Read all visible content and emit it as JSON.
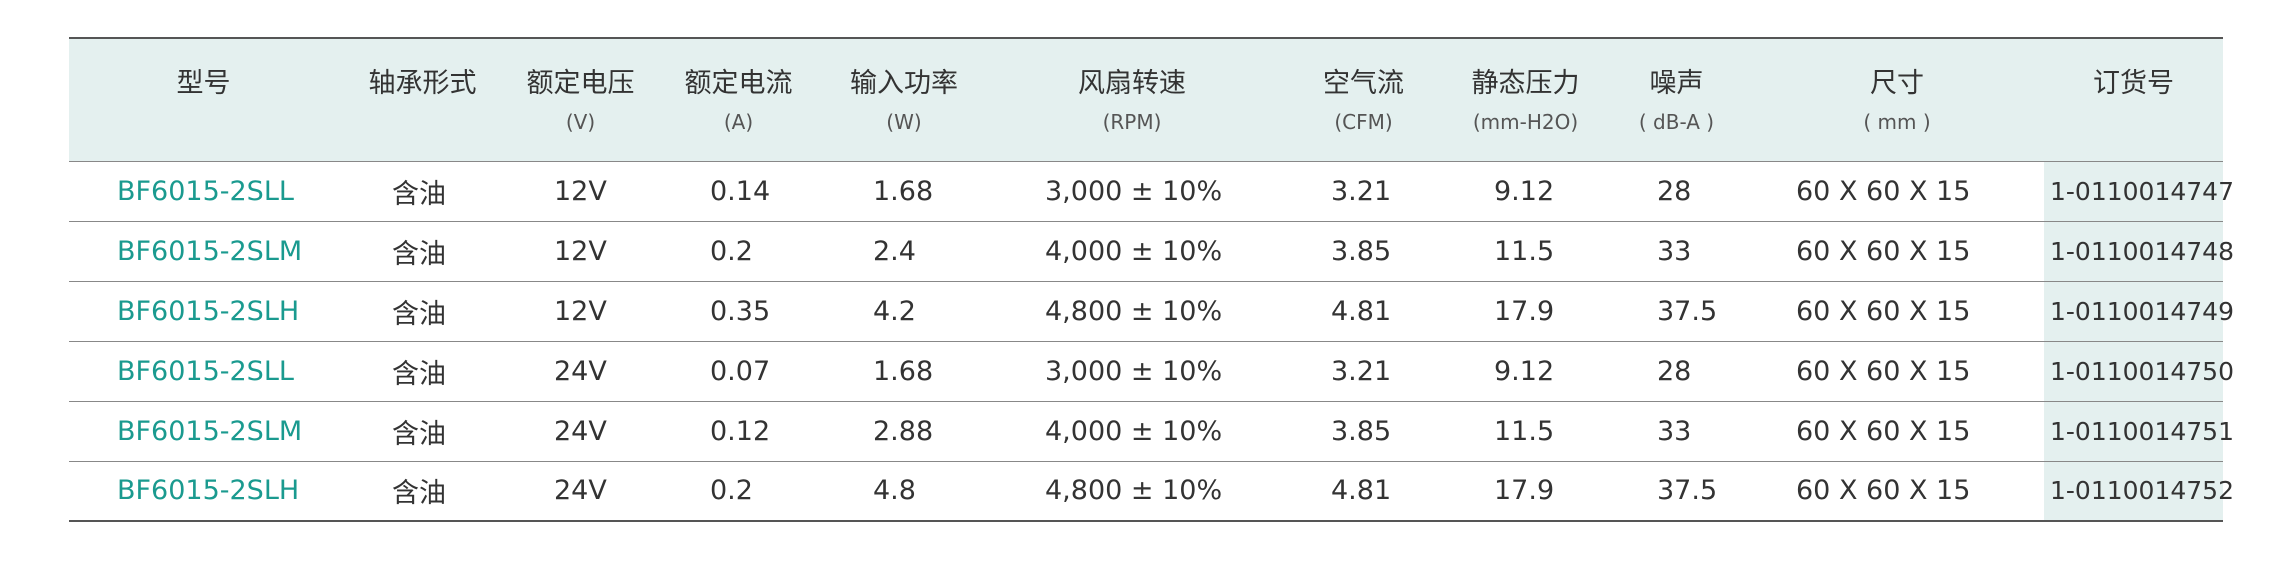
{
  "table": {
    "headers": [
      {
        "title": "型号"
      },
      {
        "title": "轴承形式"
      },
      {
        "title": "额定电压",
        "unit": "(V)"
      },
      {
        "title": "额定电流",
        "unit": "(A)"
      },
      {
        "title": "输入功率",
        "unit": "(W)"
      },
      {
        "title": "风扇转速",
        "unit": "(RPM)"
      },
      {
        "title": "空气流",
        "unit": "(CFM)"
      },
      {
        "title": "静态压力",
        "unit": "(mm-H2O)"
      },
      {
        "title": "噪声",
        "unit": "( dB-A )"
      },
      {
        "title": "尺寸",
        "unit": "( mm )"
      },
      {
        "title": "订货号"
      }
    ],
    "rows": [
      [
        "BF6015-2SLL",
        "含油",
        "12V",
        "0.14",
        "1.68",
        "3,000 ± 10%",
        "3.21",
        "9.12",
        "28",
        "60 X 60 X 15",
        "1-0110014747"
      ],
      [
        "BF6015-2SLM",
        "含油",
        "12V",
        "0.2",
        "2.4",
        "4,000 ± 10%",
        "3.85",
        "11.5",
        "33",
        "60 X 60 X 15",
        "1-0110014748"
      ],
      [
        "BF6015-2SLH",
        "含油",
        "12V",
        "0.35",
        "4.2",
        "4,800 ± 10%",
        "4.81",
        "17.9",
        "37.5",
        "60 X 60 X 15",
        "1-0110014749"
      ],
      [
        "BF6015-2SLL",
        "含油",
        "24V",
        "0.07",
        "1.68",
        "3,000 ± 10%",
        "3.21",
        "9.12",
        "28",
        "60 X 60 X 15",
        "1-0110014750"
      ],
      [
        "BF6015-2SLM",
        "含油",
        "24V",
        "0.12",
        "2.88",
        "4,000 ± 10%",
        "3.85",
        "11.5",
        "33",
        "60 X 60 X 15",
        "1-0110014751"
      ],
      [
        "BF6015-2SLH",
        "含油",
        "24V",
        "0.2",
        "4.8",
        "4,800 ± 10%",
        "4.81",
        "17.9",
        "37.5",
        "60 X 60 X 15",
        "1-0110014752"
      ]
    ]
  }
}
